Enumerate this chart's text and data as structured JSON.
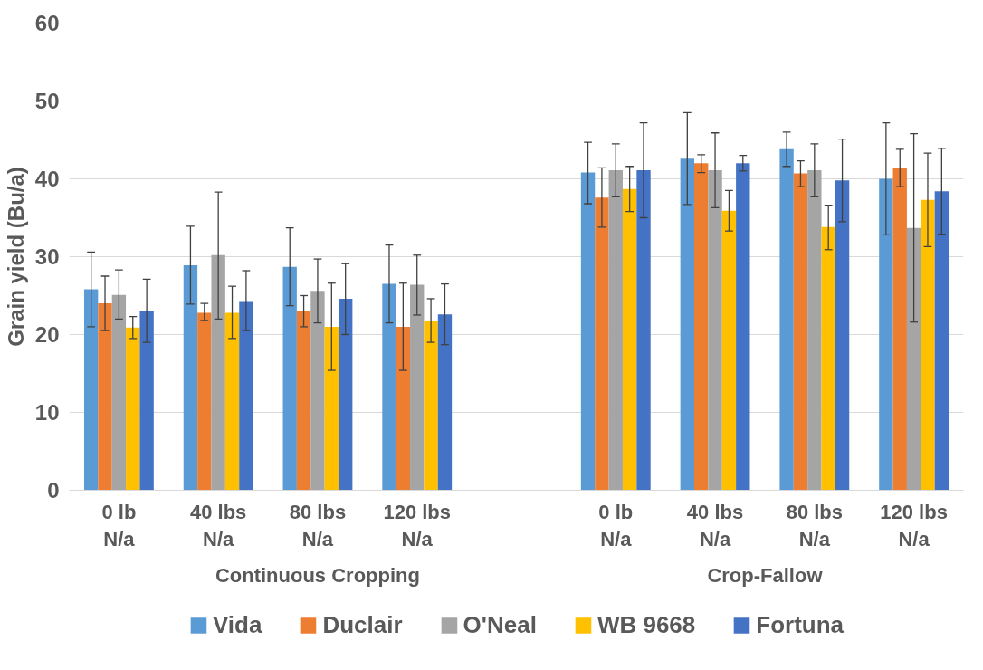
{
  "chart_data": {
    "type": "bar",
    "ylabel": "Grain yield (Bu/a)",
    "categories": [
      "0 lb\nN/a",
      "40 lbs\nN/a",
      "80 lbs\nN/a",
      "120 lbs\nN/a",
      null,
      "0 lb\nN/a",
      "40 lbs\nN/a",
      "80 lbs\nN/a",
      "120 lbs\nN/a"
    ],
    "annotations": [
      "Continuous Cropping",
      "Crop-Fallow"
    ],
    "series": [
      {
        "name": "Vida",
        "color": "#5b9bd5",
        "values": [
          25.8,
          28.9,
          28.7,
          26.5,
          null,
          40.8,
          42.6,
          43.8,
          40.0
        ],
        "errors": [
          [
            21.0,
            30.6
          ],
          [
            23.9,
            33.9
          ],
          [
            23.7,
            33.7
          ],
          [
            21.5,
            31.5
          ],
          null,
          [
            36.8,
            44.7
          ],
          [
            36.7,
            48.5
          ],
          [
            41.6,
            46.0
          ],
          [
            32.8,
            47.2
          ]
        ]
      },
      {
        "name": "Duclair",
        "color": "#ed7d31",
        "values": [
          24.0,
          22.8,
          23.0,
          21.0,
          null,
          37.6,
          42.0,
          40.7,
          41.4
        ],
        "errors": [
          [
            20.5,
            27.5
          ],
          [
            21.8,
            24.0
          ],
          [
            21.0,
            25.0
          ],
          [
            15.4,
            26.6
          ],
          null,
          [
            33.8,
            41.4
          ],
          [
            40.8,
            43.1
          ],
          [
            39.0,
            42.3
          ],
          [
            39.0,
            43.8
          ]
        ]
      },
      {
        "name": "O'Neal",
        "color": "#a5a5a5",
        "values": [
          25.1,
          30.2,
          25.6,
          26.4,
          null,
          41.1,
          41.1,
          41.1,
          33.7
        ],
        "errors": [
          [
            22.0,
            28.3
          ],
          [
            22.0,
            38.3
          ],
          [
            21.5,
            29.7
          ],
          [
            22.5,
            30.2
          ],
          null,
          [
            37.7,
            44.5
          ],
          [
            36.3,
            45.9
          ],
          [
            37.7,
            44.5
          ],
          [
            21.6,
            45.8
          ]
        ]
      },
      {
        "name": "WB 9668",
        "color": "#ffc000",
        "values": [
          20.9,
          22.8,
          21.0,
          21.8,
          null,
          38.7,
          35.9,
          33.8,
          37.3
        ],
        "errors": [
          [
            19.5,
            22.3
          ],
          [
            19.5,
            26.2
          ],
          [
            15.4,
            26.6
          ],
          [
            19.0,
            24.6
          ],
          null,
          [
            35.8,
            41.6
          ],
          [
            33.3,
            38.5
          ],
          [
            30.9,
            36.6
          ],
          [
            31.3,
            43.3
          ]
        ]
      },
      {
        "name": "Fortuna",
        "color": "#4472c4",
        "values": [
          23.0,
          24.3,
          24.6,
          22.6,
          null,
          41.1,
          42.0,
          39.8,
          38.4
        ],
        "errors": [
          [
            19.0,
            27.1
          ],
          [
            20.5,
            28.2
          ],
          [
            20.0,
            29.1
          ],
          [
            18.7,
            26.5
          ],
          null,
          [
            35.0,
            47.2
          ],
          [
            41.0,
            43.0
          ],
          [
            34.5,
            45.1
          ],
          [
            32.9,
            43.9
          ]
        ]
      }
    ],
    "ylim": [
      0,
      60
    ],
    "yticks": [
      0,
      10,
      20,
      30,
      40,
      50,
      60
    ],
    "grid": "y",
    "legend": "bottom"
  }
}
